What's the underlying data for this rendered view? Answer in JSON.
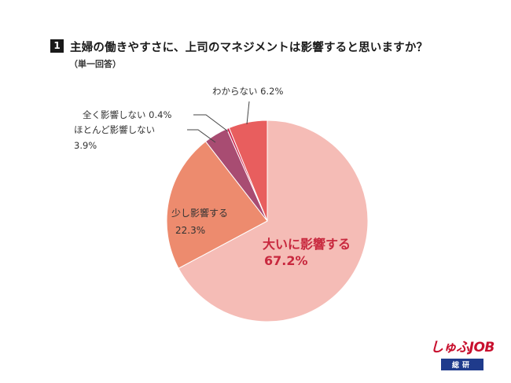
{
  "header": {
    "question_number": "1",
    "title": "主婦の働きやすさに、上司のマネジメントは影響すると思いますか？",
    "subtitle": "（単一回答）"
  },
  "chart_data": {
    "type": "pie",
    "title": "主婦の働きやすさに、上司のマネジメントは影響すると思いますか？",
    "subtitle": "（単一回答）",
    "start_angle_deg": 0,
    "direction": "clockwise",
    "slices": [
      {
        "label": "大いに影響する",
        "value": 67.2,
        "value_label": "67.2%",
        "color": "#f5bcb6"
      },
      {
        "label": "少し影響する",
        "value": 22.3,
        "value_label": "22.3%",
        "color": "#ed8b6e"
      },
      {
        "label": "ほとんど影響しない",
        "value": 3.9,
        "value_label": "3.9%",
        "color": "#a84c72"
      },
      {
        "label": "全く影響しない",
        "value": 0.4,
        "value_label": "0.4%",
        "color": "#d12850"
      },
      {
        "label": "わからない",
        "value": 6.2,
        "value_label": "6.2%",
        "color": "#e85e5e"
      }
    ],
    "labels": {
      "s0_name": "大いに影響する",
      "s0_value": "67.2%",
      "s1_name": "少し影響する",
      "s1_value": "22.3%",
      "s2_name": "ほとんど影響しない",
      "s2_value": "3.9%",
      "s3_text": "全く影響しない 0.4%",
      "s4_text": "わからない 6.2%"
    },
    "emphasis_label_color": "#c8283e"
  },
  "logo": {
    "main": "しゅふJOB",
    "sub": "総研"
  }
}
